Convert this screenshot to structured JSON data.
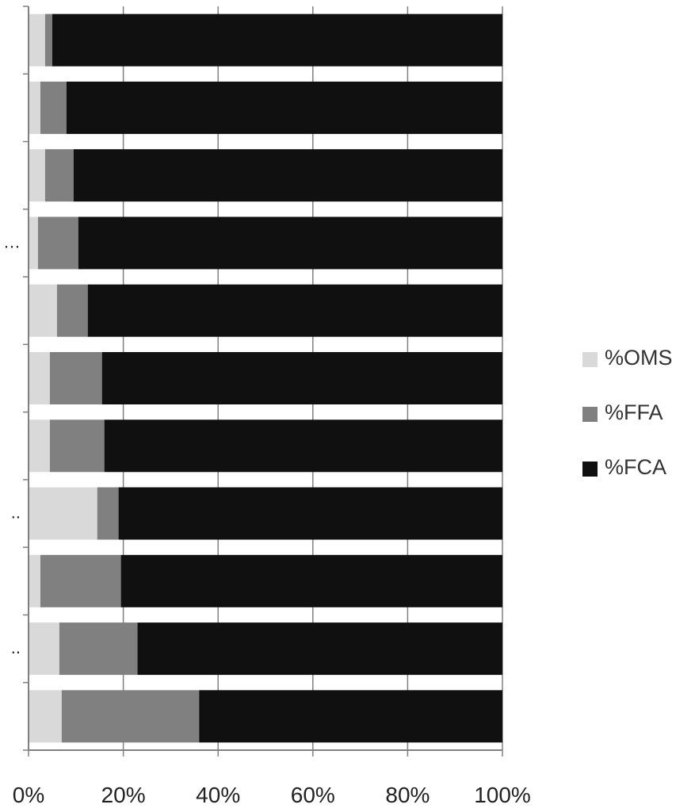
{
  "chart_data": {
    "type": "bar",
    "orientation": "horizontal",
    "stacked": "percent",
    "title": "",
    "xlabel": "",
    "ylabel": "",
    "xlim": [
      0,
      100
    ],
    "x_ticks": [
      "0%",
      "20%",
      "40%",
      "60%",
      "80%",
      "100%"
    ],
    "category_labels": [
      "",
      "",
      "",
      "…",
      "",
      "",
      "",
      "..",
      "",
      "..",
      ""
    ],
    "series": [
      {
        "name": "%OMS",
        "color": "#d9d9d9",
        "values": [
          3.5,
          2.5,
          3.5,
          2.0,
          6.0,
          4.5,
          4.5,
          14.5,
          2.5,
          6.5,
          7.0
        ]
      },
      {
        "name": "%FFA",
        "color": "#808080",
        "values": [
          1.5,
          5.5,
          6.0,
          8.5,
          6.5,
          11.0,
          11.5,
          4.5,
          17.0,
          16.5,
          29.0
        ]
      },
      {
        "name": "%FCA",
        "color": "#101010",
        "values": [
          95.0,
          92.0,
          90.5,
          89.5,
          87.5,
          84.5,
          84.0,
          81.0,
          80.5,
          77.0,
          64.0
        ]
      }
    ],
    "grid": {
      "x_major": true
    },
    "legend": "right"
  }
}
